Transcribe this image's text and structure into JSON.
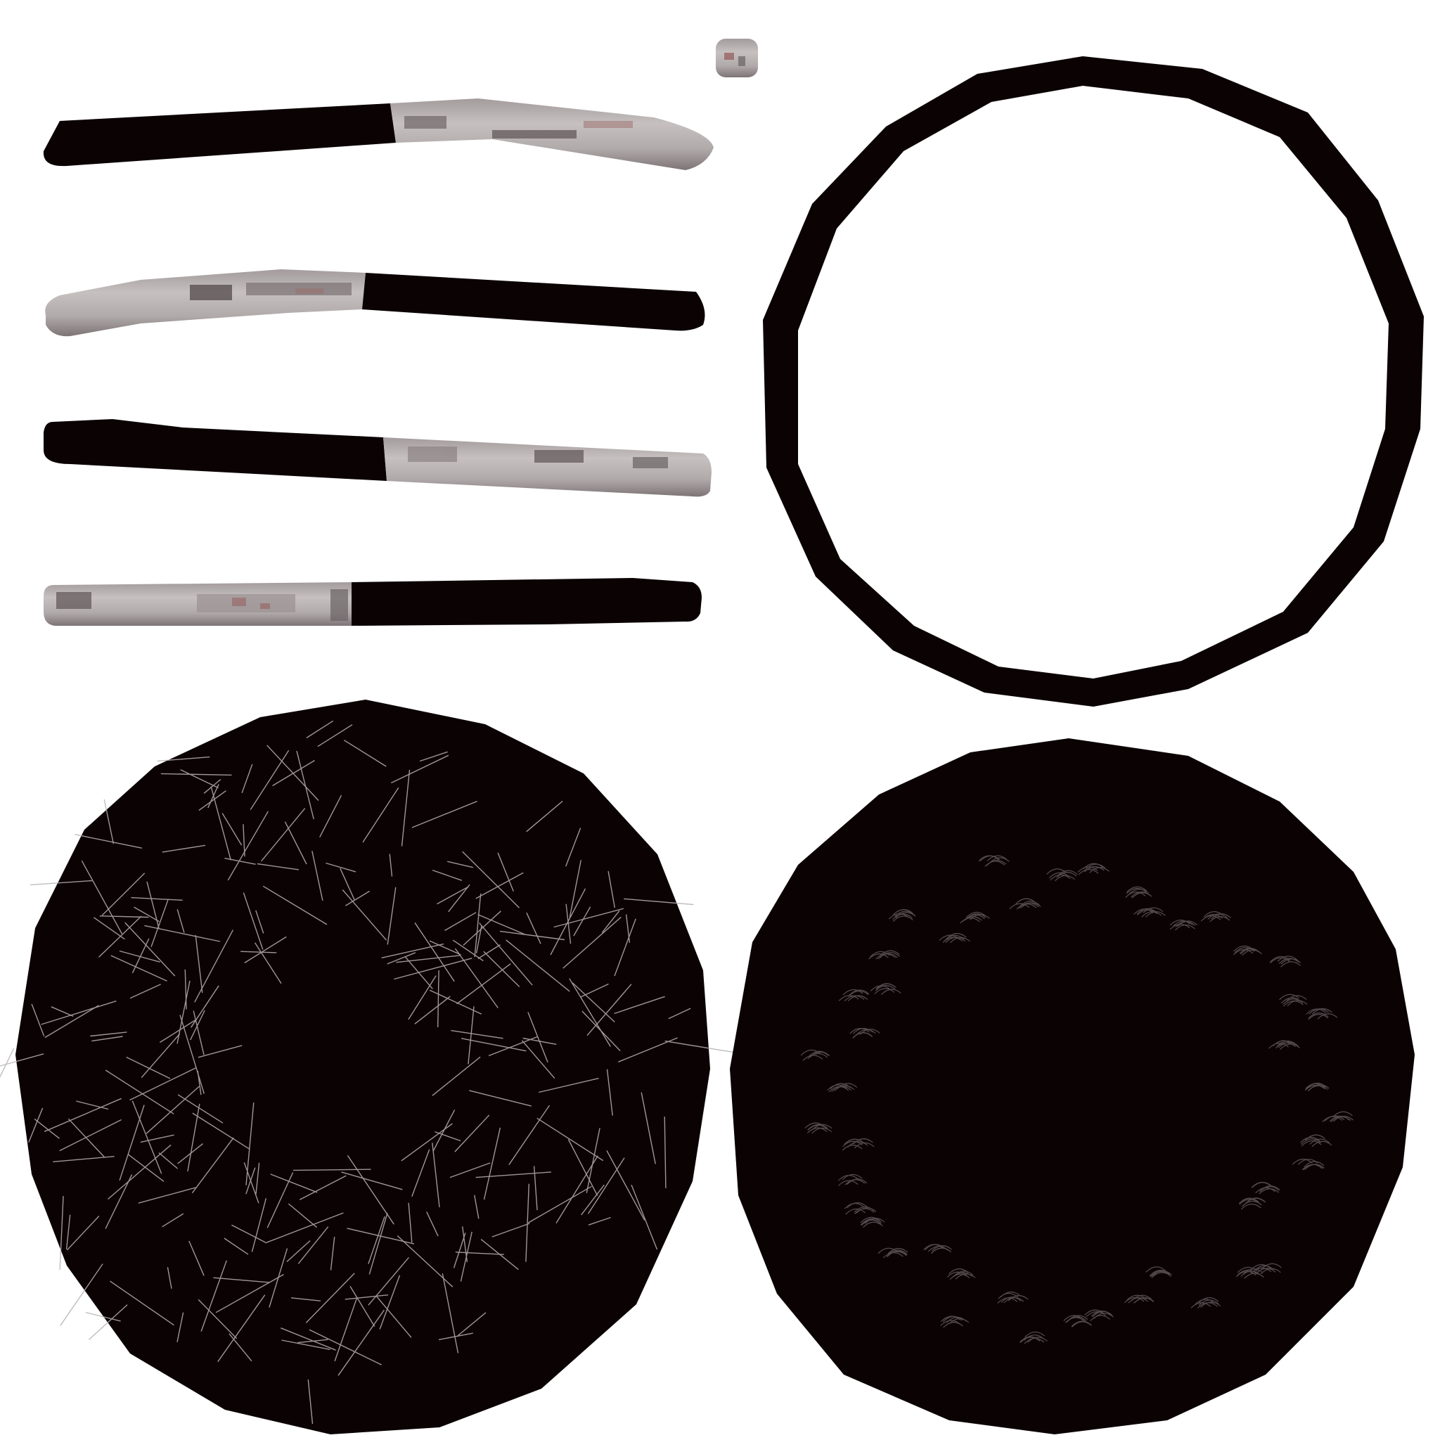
{
  "colors": {
    "background": "#ffffff",
    "dark": "#0b0204",
    "metal_light": "#c2bcbc",
    "metal_mid": "#9a9192",
    "metal_dark": "#5c5355",
    "rust": "#8a4a48",
    "scratch": "#b8b0b2",
    "scratch_faint": "#5a5456"
  },
  "pieces": [
    {
      "name": "metal-swatch",
      "type": "texture-swatch"
    },
    {
      "name": "strap-1",
      "type": "strap",
      "metal_end": "right"
    },
    {
      "name": "strap-2",
      "type": "strap",
      "metal_end": "left"
    },
    {
      "name": "strap-3",
      "type": "strap",
      "metal_end": "right"
    },
    {
      "name": "strap-4",
      "type": "strap",
      "metal_end": "left"
    },
    {
      "name": "dark-ring",
      "type": "ring"
    },
    {
      "name": "scratched-disc-heavy",
      "type": "disc",
      "scratch_style": "heavy"
    },
    {
      "name": "scratched-disc-light",
      "type": "disc",
      "scratch_style": "light"
    }
  ]
}
